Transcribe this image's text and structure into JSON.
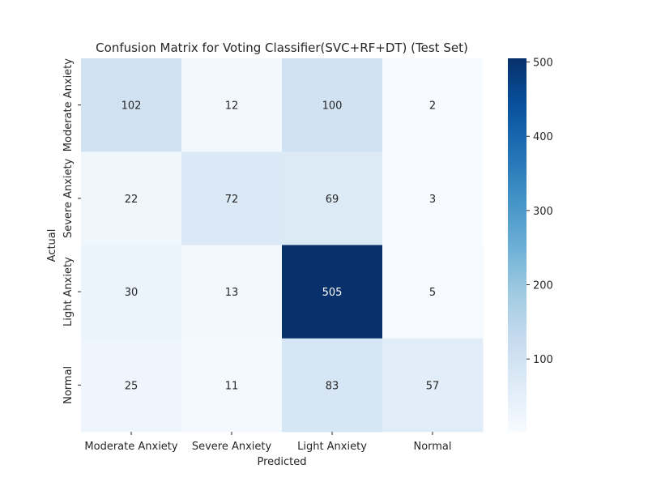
{
  "chart_data": {
    "type": "heatmap",
    "title": "Confusion Matrix for Voting Classifier(SVC+RF+DT) (Test Set)",
    "xlabel": "Predicted",
    "ylabel": "Actual",
    "x_categories": [
      "Moderate Anxiety",
      "Severe Anxiety",
      "Light Anxiety",
      "Normal"
    ],
    "y_categories": [
      "Moderate Anxiety",
      "Severe Anxiety",
      "Light Anxiety",
      "Normal"
    ],
    "matrix": [
      [
        102,
        12,
        100,
        2
      ],
      [
        22,
        72,
        69,
        3
      ],
      [
        30,
        13,
        505,
        5
      ],
      [
        25,
        11,
        83,
        57
      ]
    ],
    "colormap": "Blues",
    "colorbar": {
      "min": 2,
      "max": 505,
      "ticks": [
        100,
        200,
        300,
        400,
        500
      ]
    }
  }
}
